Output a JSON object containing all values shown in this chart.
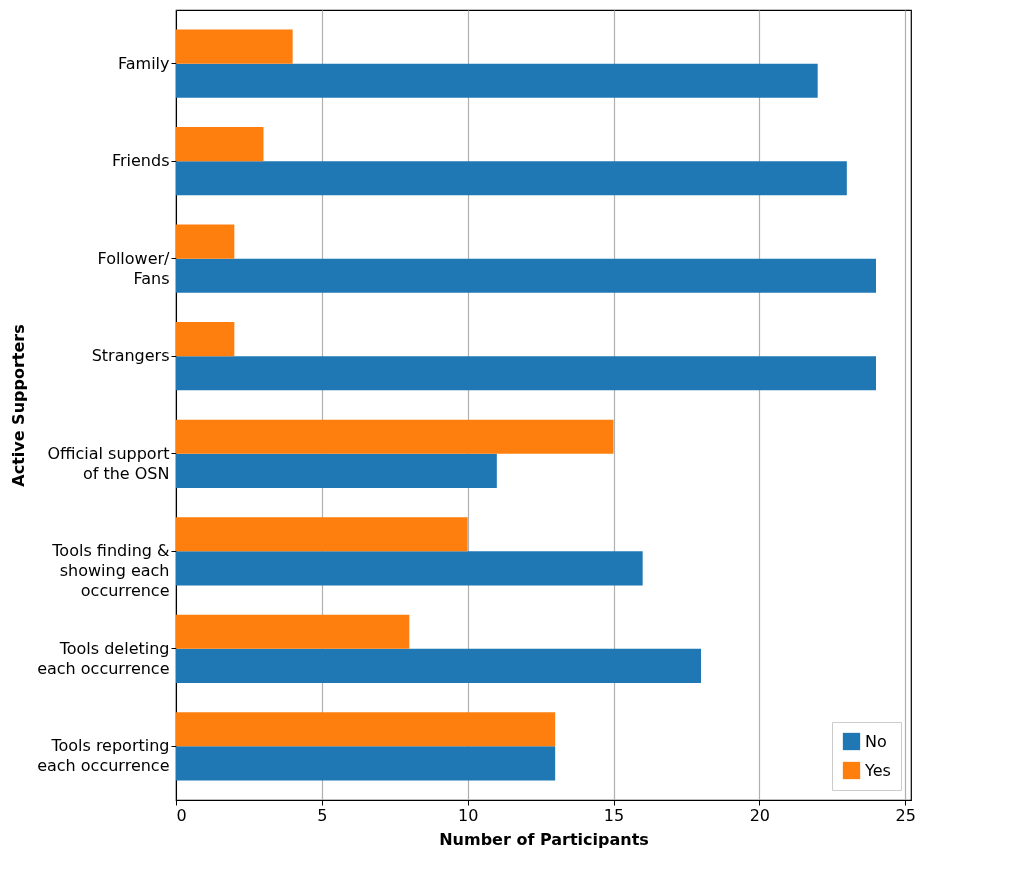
{
  "chart_data": {
    "type": "bar",
    "orientation": "horizontal",
    "xlabel": "Number of Participants",
    "ylabel": "Active Supporters",
    "categories": [
      "Family",
      "Friends",
      "Follower/\nFans",
      "Strangers",
      "Official support\nof the OSN",
      "Tools finding &\nshowing each\noccurrence",
      "Tools deleting\neach occurrence",
      "Tools reporting\neach occurrence"
    ],
    "series": [
      {
        "name": "No",
        "color": "#1f77b4",
        "values": [
          22,
          23,
          24,
          24,
          11,
          16,
          18,
          13
        ]
      },
      {
        "name": "Yes",
        "color": "#ff7f0e",
        "values": [
          4,
          3,
          2,
          2,
          15,
          10,
          8,
          13
        ]
      }
    ],
    "xlim": [
      0,
      25.2
    ],
    "xticks": [
      0,
      5,
      10,
      15,
      20,
      25
    ],
    "grid": "x",
    "legend": "bottom right"
  }
}
